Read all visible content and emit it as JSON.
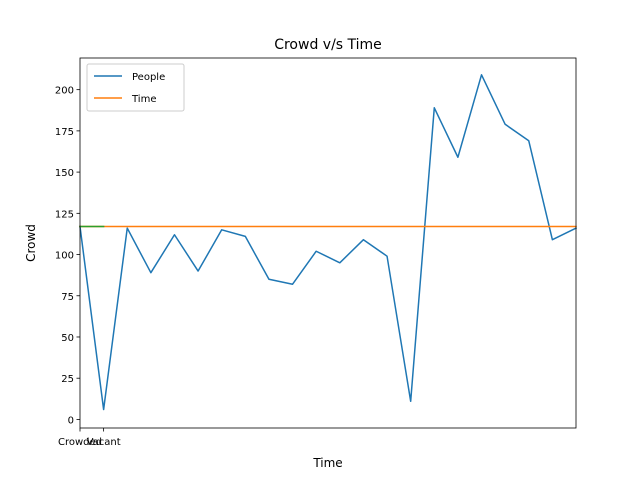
{
  "chart_data": {
    "type": "line",
    "title": "Crowd v/s Time",
    "xlabel": "Time",
    "ylabel": "Crowd",
    "xlim": [
      0,
      21
    ],
    "ylim": [
      -5.2,
      219.2
    ],
    "yticks": [
      0,
      25,
      50,
      75,
      100,
      125,
      150,
      175,
      200
    ],
    "xtick_labels": [
      {
        "x": 0,
        "label": "Crowded"
      },
      {
        "x": 1,
        "label": "Vacant"
      }
    ],
    "grid": false,
    "legend": {
      "placement": "top-left",
      "entries": [
        "People",
        "Time"
      ]
    },
    "series": [
      {
        "name": "People",
        "color": "#1f77b4",
        "x": [
          0,
          1,
          2,
          3,
          4,
          5,
          6,
          7,
          8,
          9,
          10,
          11,
          12,
          13,
          14,
          15,
          16,
          17,
          18,
          19,
          20,
          21
        ],
        "values": [
          117,
          6,
          116,
          89,
          112,
          90,
          115,
          111,
          85,
          82,
          102,
          95,
          109,
          99,
          11,
          189,
          159,
          209,
          179,
          169,
          109,
          116
        ]
      },
      {
        "name": "Time",
        "color": "#ff7f0e",
        "x": [
          0,
          21
        ],
        "values": [
          117,
          117
        ]
      },
      {
        "color": "#2ca02c",
        "x": [
          0,
          1
        ],
        "values": [
          117,
          117
        ]
      }
    ]
  }
}
